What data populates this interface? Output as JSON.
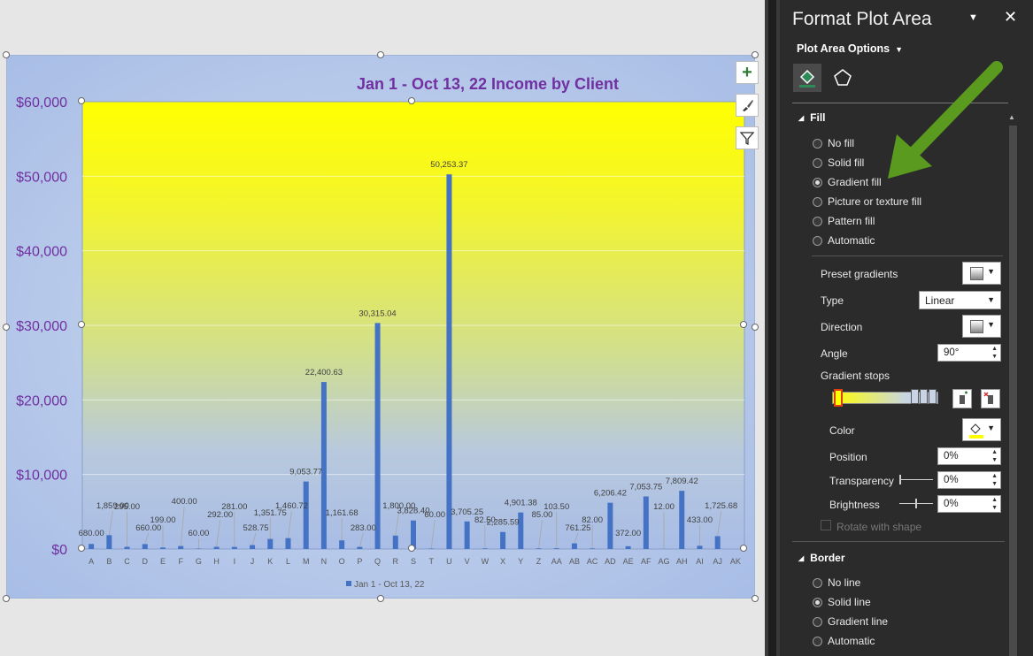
{
  "chart_data": {
    "type": "bar",
    "title": "Jan 1 - Oct 13, 22 Income by Client",
    "categories": [
      "A",
      "B",
      "C",
      "D",
      "E",
      "F",
      "G",
      "H",
      "I",
      "J",
      "K",
      "L",
      "M",
      "N",
      "O",
      "P",
      "Q",
      "R",
      "S",
      "T",
      "U",
      "V",
      "W",
      "X",
      "Y",
      "Z",
      "AA",
      "AB",
      "AC",
      "AD",
      "AE",
      "AF",
      "AG",
      "AH",
      "AI",
      "AJ",
      "AK"
    ],
    "series": [
      {
        "name": "Jan 1 - Oct 13, 22",
        "values": [
          680,
          1859,
          295,
          660,
          199,
          400,
          60,
          292,
          281,
          528.75,
          1351.75,
          1460.72,
          9053.77,
          22400.63,
          1161.68,
          283,
          30315.04,
          1800,
          3828.4,
          60,
          50253.37,
          3705.25,
          82.5,
          2285.59,
          4901.38,
          85,
          103.5,
          761.25,
          82,
          6206.42,
          372,
          7053.75,
          12,
          7809.42,
          433,
          1725.68,
          0
        ]
      }
    ],
    "data_labels": [
      "680.00",
      "1,859.00",
      "295.00",
      "660.00",
      "199.00",
      "400.00",
      "60.00",
      "292.00",
      "281.00",
      "528.75",
      "1,351.75",
      "1,460.72",
      "9,053.77",
      "22,400.63",
      "1,161.68",
      "283.00",
      "30,315.04",
      "1,800.00",
      "3,828.40",
      "60.00",
      "50,253.37",
      "3,705.25",
      "82.50",
      "2,285.59",
      "4,901.38",
      "85.00",
      "103.50",
      "761.25",
      "82.00",
      "6,206.42",
      "372.00",
      "7,053.75",
      "12.00",
      "7,809.42",
      "433.00",
      "1,725.68",
      ""
    ],
    "y_ticks": [
      "$0",
      "$10,000",
      "$20,000",
      "$30,000",
      "$40,000",
      "$50,000",
      "$60,000"
    ],
    "ylim": [
      0,
      60000
    ],
    "legend": "Jan 1 - Oct 13, 22",
    "legend_position": "bottom",
    "plot_fill": "gradient",
    "colors": {
      "bar": "#4472c4",
      "title": "#7030a0",
      "axis": "#7030a0",
      "gradient_top": "#ffff00",
      "gradient_bottom": "#a9bde6"
    }
  },
  "pane": {
    "title": "Format Plot Area",
    "options_label": "Plot Area Options",
    "fill_section": "Fill",
    "fill_options": [
      {
        "label": "No fill",
        "checked": false
      },
      {
        "label": "Solid fill",
        "checked": false
      },
      {
        "label": "Gradient fill",
        "checked": true
      },
      {
        "label": "Picture or texture fill",
        "checked": false
      },
      {
        "label": "Pattern fill",
        "checked": false
      },
      {
        "label": "Automatic",
        "checked": false
      }
    ],
    "preset_gradients": "Preset gradients",
    "type_label": "Type",
    "type_value": "Linear",
    "direction_label": "Direction",
    "angle_label": "Angle",
    "angle_value": "90°",
    "gradient_stops": "Gradient stops",
    "color_label": "Color",
    "position_label": "Position",
    "position_value": "0%",
    "transparency_label": "Transparency",
    "transparency_value": "0%",
    "brightness_label": "Brightness",
    "brightness_value": "0%",
    "rotate_label": "Rotate with shape",
    "border_section": "Border",
    "border_options": [
      {
        "label": "No line",
        "checked": false
      },
      {
        "label": "Solid line",
        "checked": true
      },
      {
        "label": "Gradient line",
        "checked": false
      },
      {
        "label": "Automatic",
        "checked": false
      }
    ],
    "arrow_color": "#5a9a1e"
  }
}
